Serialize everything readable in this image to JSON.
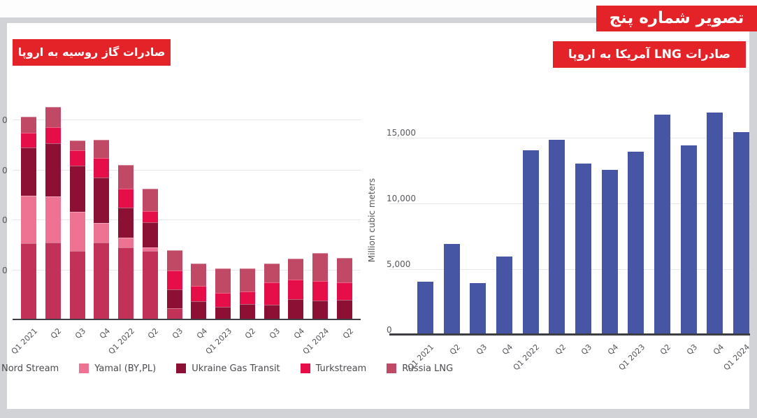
{
  "banner": {
    "text": "تصویر شماره پنج",
    "bg_color": "#e42328",
    "text_color": "#ffffff"
  },
  "frame": {
    "border_color": "#d2d3d6",
    "panel_color": "#ffffff"
  },
  "chart_data": [
    {
      "type": "bar",
      "stacked": true,
      "title": "صادرات گاز روسیه به اروپا",
      "title_bg": "#e42328",
      "xlabel": "",
      "ylabel": "",
      "ylim": [
        0,
        43000
      ],
      "y_gridline_values": [
        10000,
        20000,
        30000,
        40000
      ],
      "y_tick_labels_visible": [
        "0",
        "0",
        "0",
        "0"
      ],
      "y_tick_note": "tick labels clipped at left image edge, only trailing 0 visible",
      "grid": true,
      "legend_position": "bottom",
      "categories": [
        "Q1 2021",
        "Q2",
        "Q3",
        "Q4",
        "Q1 2022",
        "Q2",
        "Q3",
        "Q4",
        "Q1 2023",
        "Q2",
        "Q3",
        "Q4",
        "Q1 2024",
        "Q2"
      ],
      "series": [
        {
          "name": "Nord Stream",
          "color": "#c23158",
          "legend_swatch_visible": false,
          "values": [
            15400,
            15600,
            13800,
            15600,
            14500,
            13900,
            2400,
            0,
            0,
            0,
            0,
            0,
            0,
            0
          ]
        },
        {
          "name": "Yamal (BY,PL)",
          "color": "#ee7392",
          "legend_swatch_visible": true,
          "values": [
            9600,
            9200,
            7900,
            3900,
            2100,
            600,
            0,
            0,
            0,
            0,
            0,
            0,
            0,
            0
          ]
        },
        {
          "name": "Ukraine Gas Transit",
          "color": "#8c1033",
          "legend_swatch_visible": true,
          "values": [
            9600,
            10700,
            9200,
            9100,
            6000,
            5100,
            3700,
            3800,
            2600,
            3200,
            3100,
            4200,
            3900,
            4100
          ]
        },
        {
          "name": "Turkstream",
          "color": "#e60e48",
          "legend_swatch_visible": true,
          "values": [
            3000,
            3200,
            3100,
            3900,
            3800,
            2300,
            3800,
            3100,
            2800,
            2600,
            4500,
            3900,
            3900,
            3500
          ]
        },
        {
          "name": "Russia LNG",
          "color": "#c04a66",
          "legend_swatch_visible": true,
          "values": [
            3100,
            4000,
            2000,
            3600,
            4700,
            4400,
            4100,
            4400,
            4900,
            4600,
            3700,
            4200,
            5700,
            4800
          ]
        }
      ]
    },
    {
      "type": "bar",
      "stacked": false,
      "title": "صادرات LNG آمریکا به اروپا",
      "title_bg": "#e42328",
      "xlabel": "",
      "ylabel": "Million cubic meters",
      "ylim": [
        0,
        17300
      ],
      "y_tick_values": [
        0,
        5000,
        10000,
        15000
      ],
      "y_tick_labels": [
        "0",
        "5,000",
        "10,000",
        "15,000"
      ],
      "grid": true,
      "bar_color": "#4655a4",
      "categories": [
        "Q1 2021",
        "Q2",
        "Q3",
        "Q4",
        "Q1 2022",
        "Q2",
        "Q3",
        "Q4",
        "Q1 2023",
        "Q2",
        "Q3",
        "Q4",
        "Q1 2024"
      ],
      "values": [
        4100,
        7000,
        4000,
        6000,
        14100,
        14900,
        13100,
        12600,
        14000,
        16800,
        14500,
        17000,
        15500
      ]
    }
  ]
}
